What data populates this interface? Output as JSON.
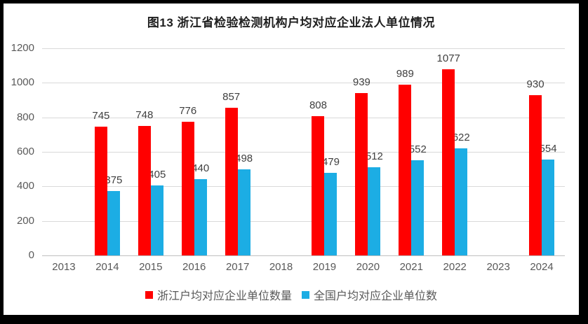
{
  "window": {
    "frame_color": "#000000",
    "panel_color": "#FFFFFF"
  },
  "chart_data": {
    "type": "bar",
    "title": "图13 浙江省检验检测机构户均对应企业法人单位情况",
    "categories": [
      "2013",
      "2014",
      "2015",
      "2016",
      "2017",
      "2018",
      "2019",
      "2020",
      "2021",
      "2022",
      "2023",
      "2024"
    ],
    "series": [
      {
        "name": "浙江户均对应企业单位数量",
        "color": "#FF0000",
        "values": [
          null,
          745,
          748,
          776,
          857,
          null,
          808,
          939,
          989,
          1077,
          null,
          930
        ]
      },
      {
        "name": "全国户均对应企业单位数",
        "color": "#1CADE4",
        "values": [
          null,
          375,
          405,
          440,
          498,
          null,
          479,
          512,
          552,
          622,
          null,
          554
        ]
      }
    ],
    "xlabel": "",
    "ylabel": "",
    "ylim": [
      0,
      1200
    ],
    "yticks": [
      0,
      200,
      400,
      600,
      800,
      1000,
      1200
    ],
    "grid": true,
    "legend_position": "bottom",
    "data_labels": "outside-end",
    "colors": {
      "axis_text": "#595959",
      "data_label_text": "#3F3F3F",
      "gridline": "#D9D9D9",
      "axis_line": "#BFBFBF",
      "title_text": "#1F1F1F"
    }
  }
}
